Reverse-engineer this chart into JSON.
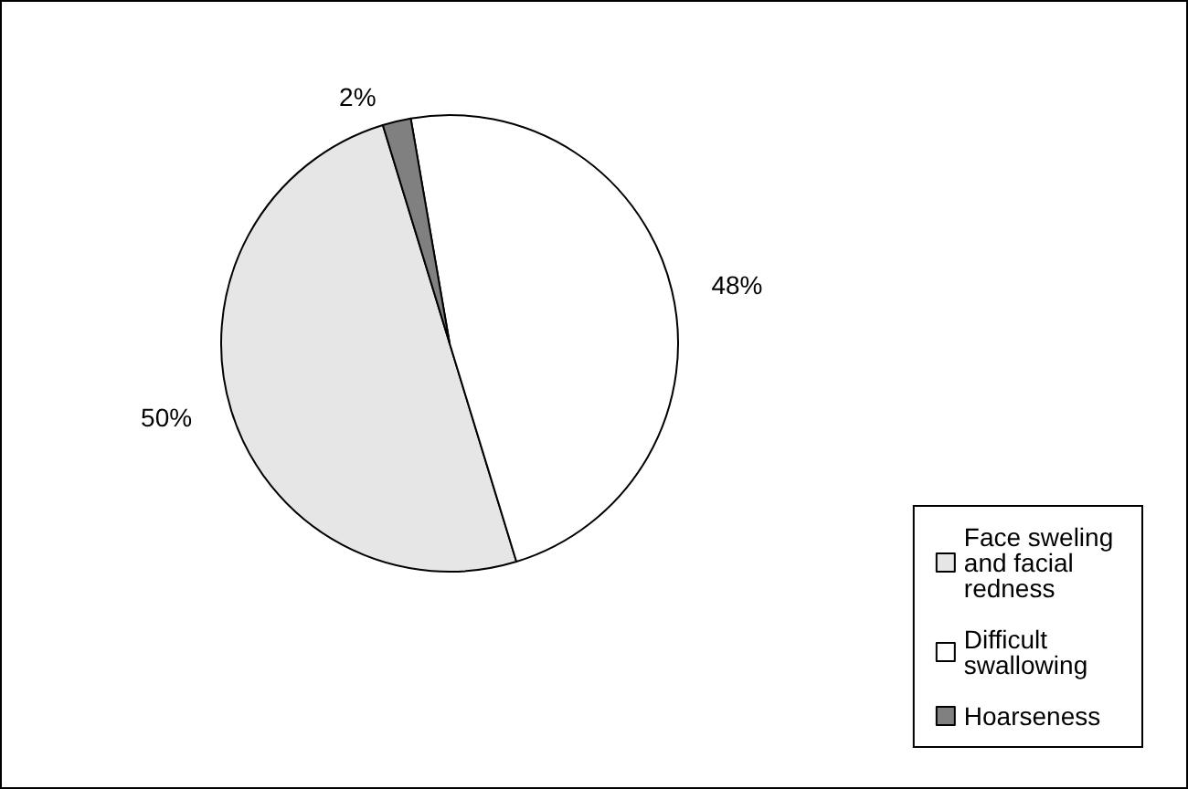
{
  "chart_data": {
    "type": "pie",
    "categories": [
      "Face sweling and facial redness",
      "Difficult swallowing",
      "Hoarseness"
    ],
    "values": [
      50,
      48,
      2
    ],
    "colors": [
      "#e6e6e6",
      "#ffffff",
      "#808080"
    ],
    "value_labels": [
      "50%",
      "48%",
      "2%"
    ],
    "legend": "bottom right"
  }
}
